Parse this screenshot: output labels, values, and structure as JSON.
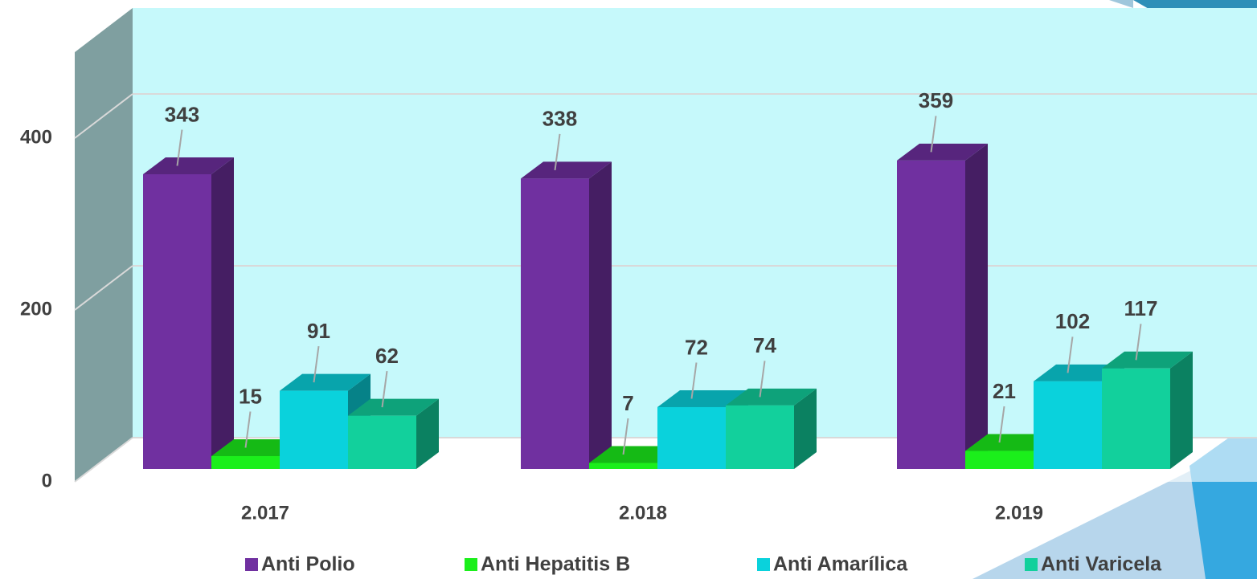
{
  "chart_data": {
    "type": "bar3d",
    "categories": [
      "2.017",
      "2.018",
      "2.019"
    ],
    "series": [
      {
        "name": "Anti Polio",
        "color": "#7030a0",
        "values": [
          343,
          338,
          359
        ]
      },
      {
        "name": "Anti Hepatitis B",
        "color": "#1bef1b",
        "values": [
          15,
          7,
          21
        ]
      },
      {
        "name": "Anti Amarílica",
        "color": "#0ad2dc",
        "values": [
          91,
          72,
          102
        ]
      },
      {
        "name": "Anti Varicela",
        "color": "#12d09c",
        "values": [
          62,
          74,
          117
        ]
      }
    ],
    "ylim": [
      0,
      500
    ],
    "yticks": [
      0,
      200,
      400
    ],
    "grid": true,
    "legend": "bottom"
  }
}
